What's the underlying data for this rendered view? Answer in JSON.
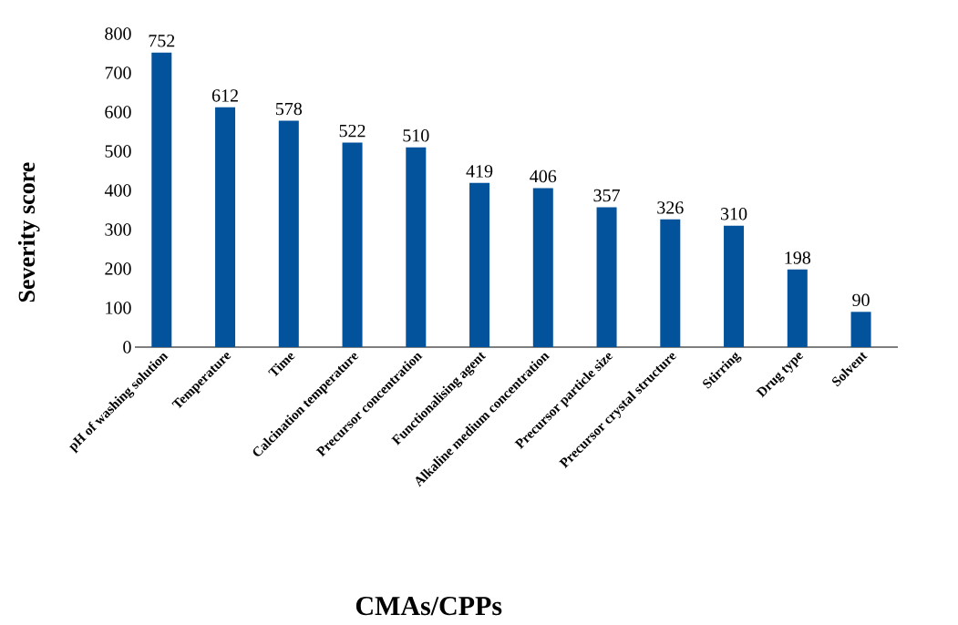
{
  "chart_data": {
    "type": "bar",
    "xlabel": "CMAs/CPPs",
    "ylabel": "Severity score",
    "categories": [
      "pH of washing solution",
      "Temperature",
      "Time",
      "Calcination temperature",
      "Precursor concentration",
      "Functionalising agent",
      "Alkaline medium concentration",
      "Precursor particle size",
      "Precursor crystal structure",
      "Stirring",
      "Drug type",
      "Solvent"
    ],
    "values": [
      752,
      612,
      578,
      522,
      510,
      419,
      406,
      357,
      326,
      310,
      198,
      90
    ],
    "color": "#02529c",
    "ylim": [
      0,
      800
    ],
    "yticks": [
      0,
      100,
      200,
      300,
      400,
      500,
      600,
      700,
      800
    ],
    "data_labels": true,
    "grid": false
  }
}
